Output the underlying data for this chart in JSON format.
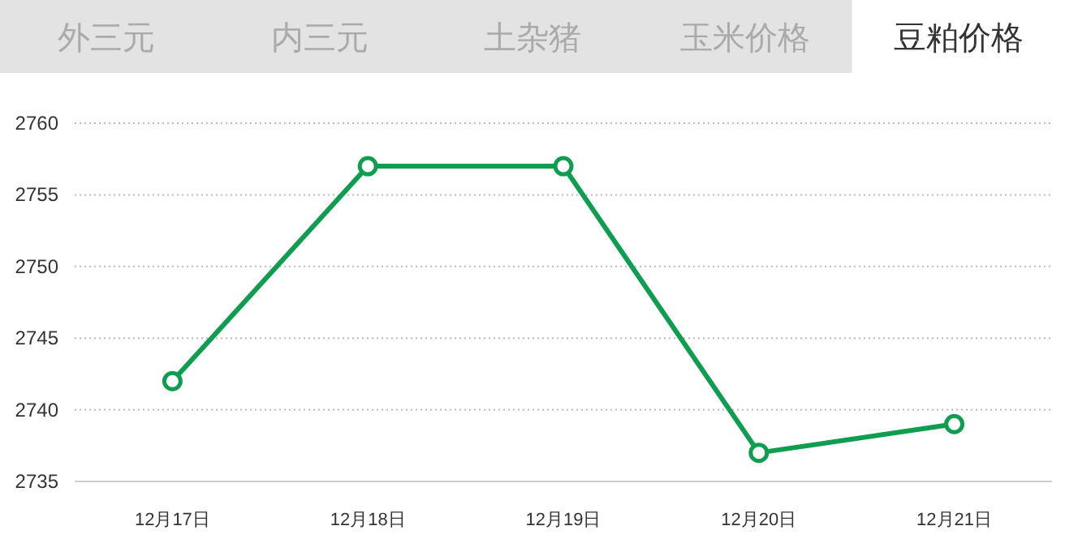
{
  "chart_data": {
    "type": "line",
    "annotations": [
      "外三元",
      "内三元",
      "土杂猪",
      "玉米价格",
      "豆粕价格"
    ],
    "categories": [
      "12月17日",
      "12月18日",
      "12月19日",
      "12月20日",
      "12月21日"
    ],
    "series": [
      {
        "color": "#0f9d50",
        "values": [
          2742,
          2757,
          2757,
          2737,
          2739
        ]
      }
    ],
    "ylim": [
      2735,
      2760
    ],
    "yticks": [
      2735,
      2740,
      2745,
      2750,
      2755,
      2760
    ],
    "grid": "y",
    "marker": "circle",
    "line_style": "solid"
  }
}
